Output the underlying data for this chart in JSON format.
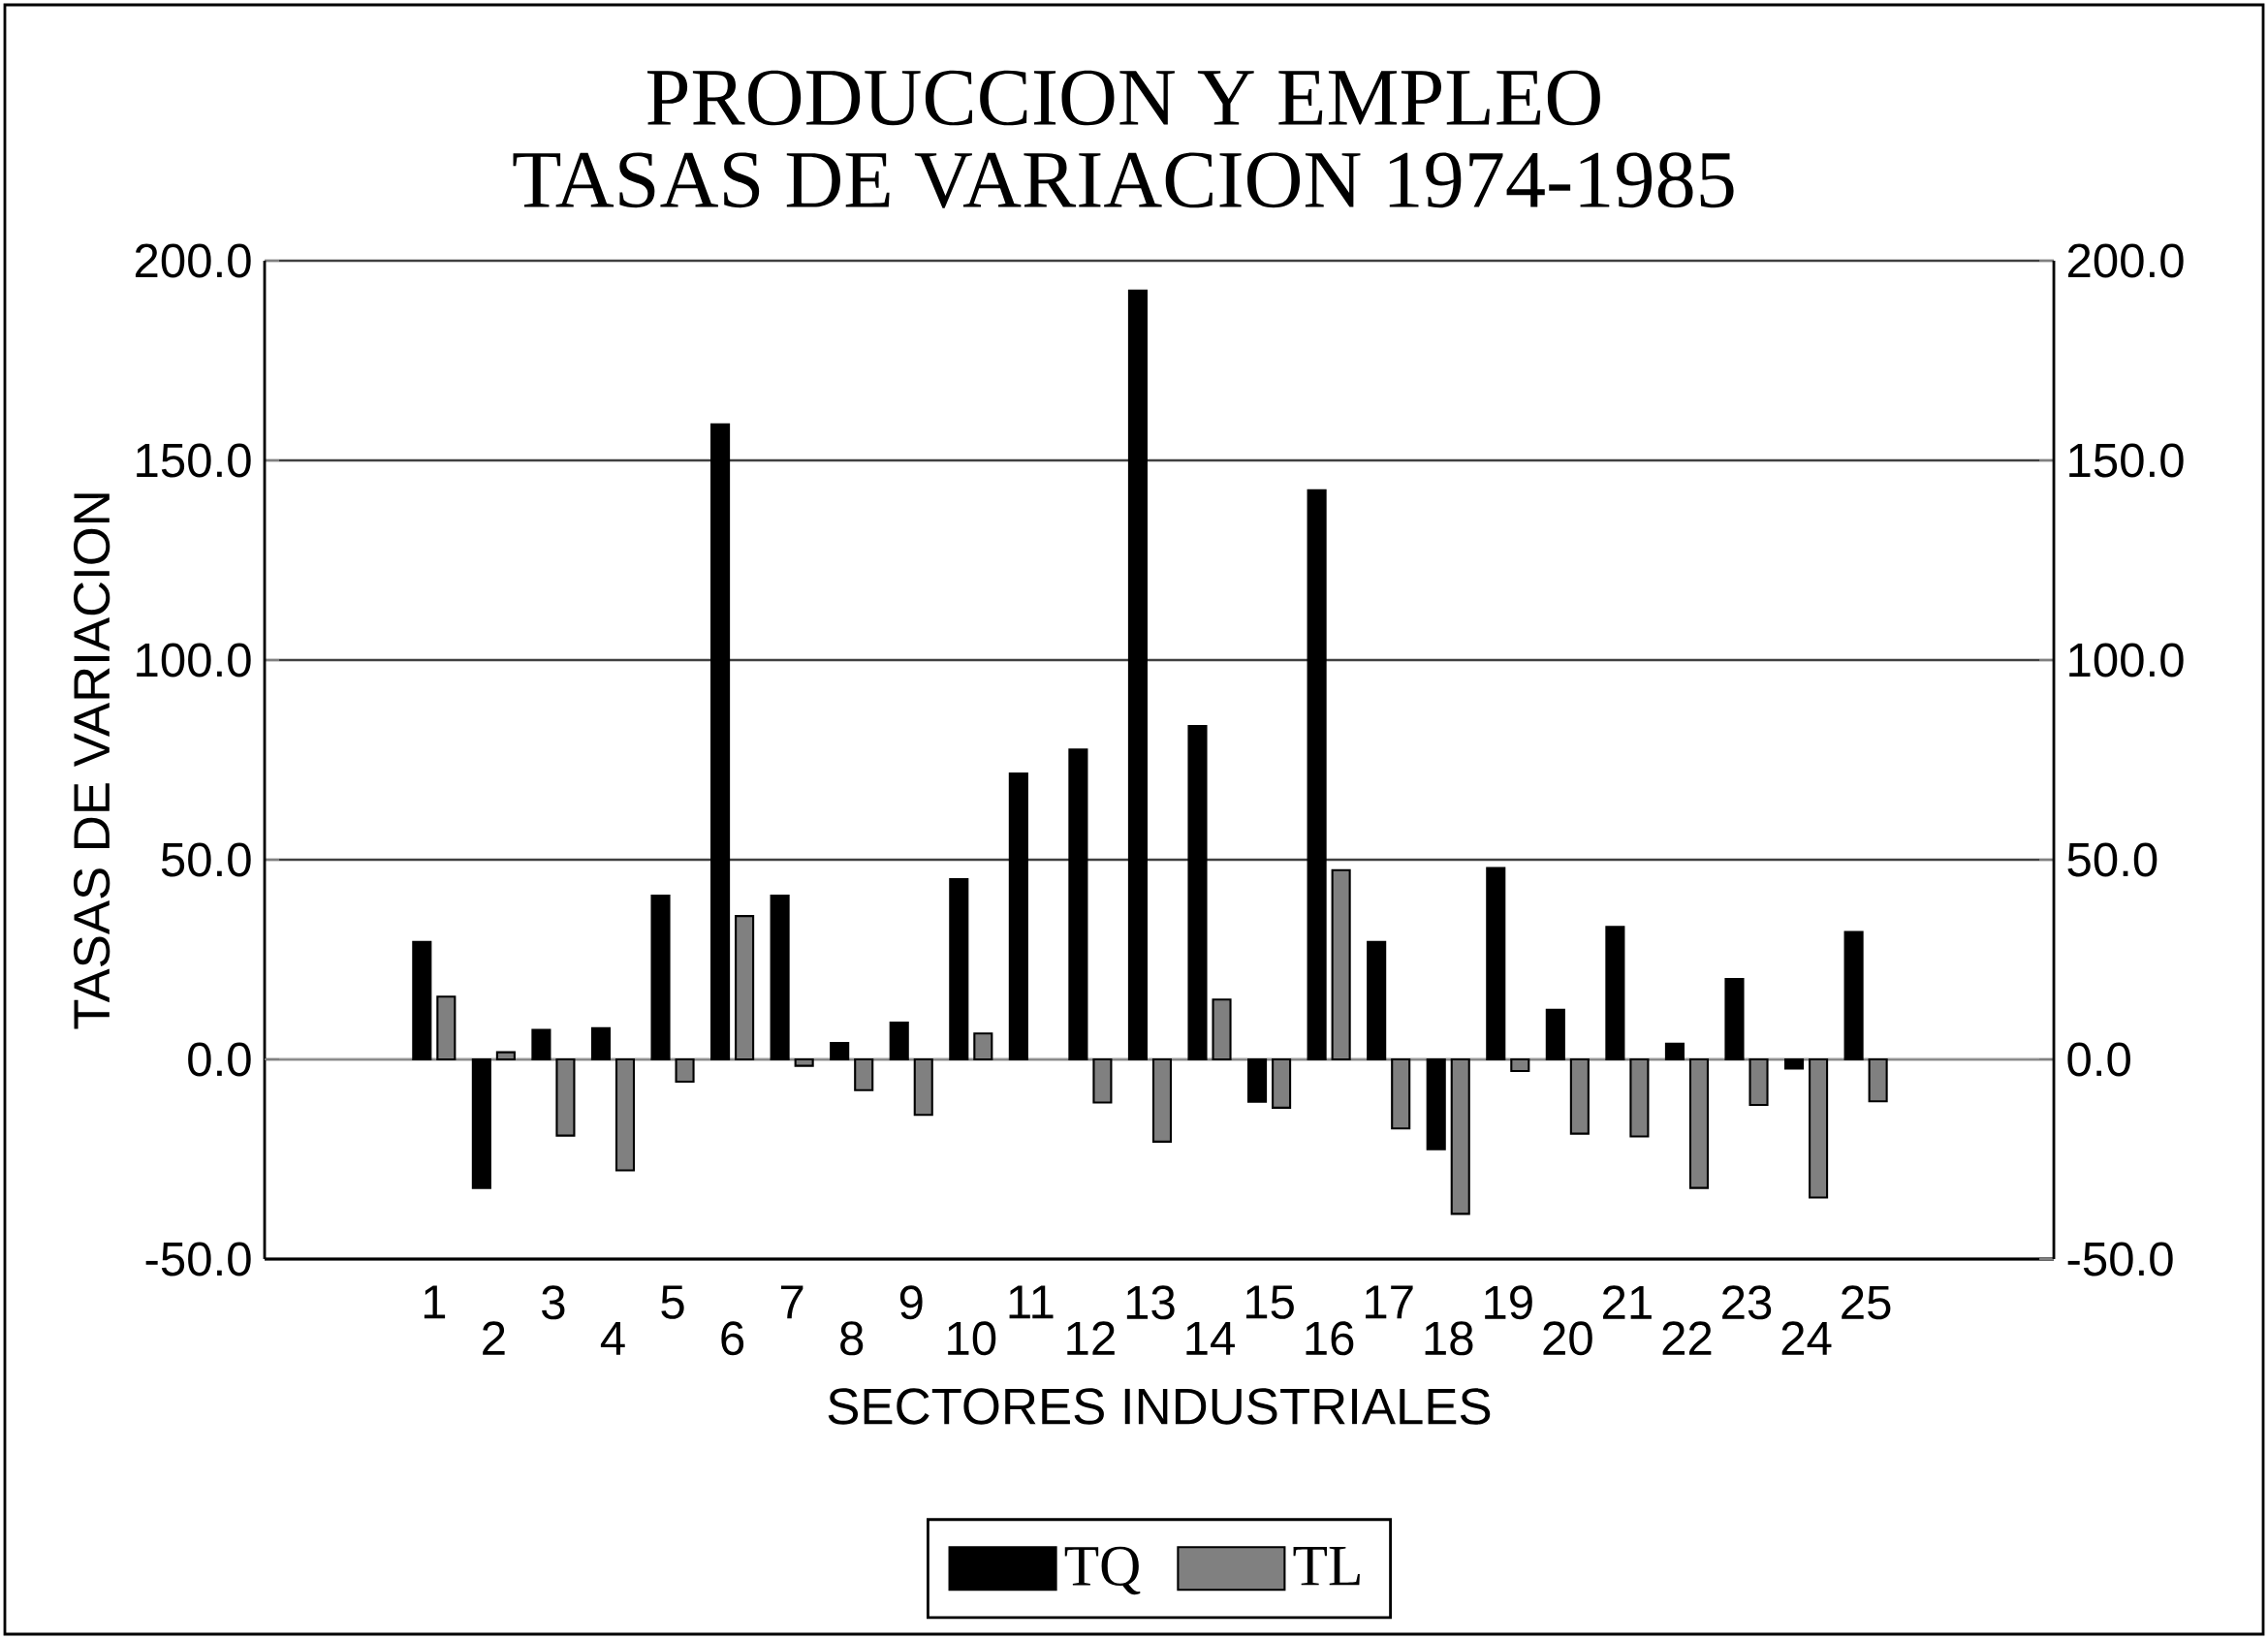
{
  "chart_data": {
    "type": "bar",
    "title": "PRODUCCION Y EMPLEO",
    "subtitle": "TASAS DE VARIACION 1974-1985",
    "xlabel": "SECTORES INDUSTRIALES",
    "ylabel": "TASAS DE VARIACION",
    "categories": [
      "1",
      "2",
      "3",
      "4",
      "5",
      "6",
      "7",
      "8",
      "9",
      "10",
      "11",
      "12",
      "13",
      "14",
      "15",
      "16",
      "17",
      "18",
      "19",
      "20",
      "21",
      "22",
      "23",
      "24",
      "25"
    ],
    "series": [
      {
        "name": "TQ",
        "color": "#000000",
        "values": [
          29.4,
          -32.2,
          7.4,
          7.8,
          41.0,
          159.0,
          41.0,
          4.1,
          9.2,
          45.1,
          71.6,
          77.6,
          192.5,
          83.5,
          -10.6,
          142.5,
          29.4,
          -22.5,
          47.9,
          12.4,
          33.2,
          3.9,
          20.1,
          -2.3,
          31.9
        ]
      },
      {
        "name": "TL",
        "color": "#808080",
        "values": [
          15.7,
          1.8,
          -19.1,
          -27.8,
          -5.6,
          35.9,
          -1.6,
          -7.7,
          -13.9,
          6.5,
          null,
          -10.8,
          -20.6,
          15.0,
          -12.1,
          47.4,
          -17.3,
          -38.7,
          -2.9,
          -18.6,
          -19.3,
          -32.2,
          -11.4,
          -34.6,
          -10.5
        ]
      }
    ],
    "ylim": [
      -50,
      200
    ],
    "yticks": [
      {
        "value": -50,
        "label": "-50.0"
      },
      {
        "value": 0,
        "label": "0.0"
      },
      {
        "value": 50,
        "label": "50.0"
      },
      {
        "value": 100,
        "label": "100.0"
      },
      {
        "value": 150,
        "label": "150.0"
      },
      {
        "value": 200,
        "label": "200.0"
      }
    ],
    "y2lim": [
      -50,
      200
    ],
    "y2ticks": [
      {
        "value": -50,
        "label": "-50.0"
      },
      {
        "value": 0,
        "label": "0.0"
      },
      {
        "value": 50,
        "label": "50.0"
      },
      {
        "value": 100,
        "label": "100.0"
      },
      {
        "value": 150,
        "label": "150.0"
      },
      {
        "value": 200,
        "label": "200.0"
      }
    ],
    "grid": "y",
    "legend": "bottom"
  }
}
